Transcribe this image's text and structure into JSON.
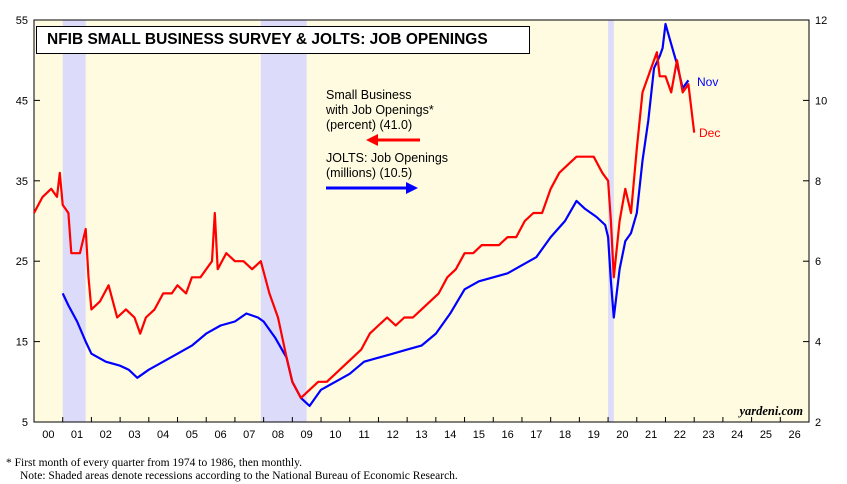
{
  "chart_data": {
    "type": "line",
    "title": "NFIB SMALL BUSINESS SURVEY & JOLTS: JOB OPENINGS",
    "x_range": [
      2000.0,
      2027.0
    ],
    "left_axis": {
      "ylim": [
        5,
        55
      ],
      "ticks": [
        5,
        15,
        25,
        35,
        45,
        55
      ]
    },
    "right_axis": {
      "ylim": [
        2,
        12
      ],
      "ticks": [
        2,
        4,
        6,
        8,
        10,
        12
      ]
    },
    "x_tick_labels": [
      "00",
      "01",
      "02",
      "03",
      "04",
      "05",
      "06",
      "07",
      "08",
      "09",
      "10",
      "11",
      "12",
      "13",
      "14",
      "15",
      "16",
      "17",
      "18",
      "19",
      "20",
      "21",
      "22",
      "23",
      "24",
      "25",
      "26"
    ],
    "recessions": [
      [
        2001.0,
        2001.8
      ],
      [
        2007.9,
        2009.5
      ],
      [
        2020.0,
        2020.2
      ]
    ],
    "series": [
      {
        "name": "Small Business with Job Openings*",
        "legend": [
          "Small Business",
          "with Job Openings*",
          "(percent) (41.0)"
        ],
        "axis": "left",
        "color": "#ff0000",
        "end_label": "Dec",
        "points": [
          [
            2000.0,
            31
          ],
          [
            2000.3,
            33
          ],
          [
            2000.6,
            34
          ],
          [
            2000.8,
            33
          ],
          [
            2000.9,
            36
          ],
          [
            2001.0,
            32
          ],
          [
            2001.2,
            31
          ],
          [
            2001.3,
            26
          ],
          [
            2001.6,
            26
          ],
          [
            2001.8,
            29
          ],
          [
            2001.9,
            23
          ],
          [
            2002.0,
            19
          ],
          [
            2002.3,
            20
          ],
          [
            2002.6,
            22
          ],
          [
            2002.9,
            18
          ],
          [
            2003.2,
            19
          ],
          [
            2003.5,
            18
          ],
          [
            2003.7,
            16
          ],
          [
            2003.9,
            18
          ],
          [
            2004.2,
            19
          ],
          [
            2004.5,
            21
          ],
          [
            2004.8,
            21
          ],
          [
            2005.0,
            22
          ],
          [
            2005.3,
            21
          ],
          [
            2005.5,
            23
          ],
          [
            2005.8,
            23
          ],
          [
            2006.0,
            24
          ],
          [
            2006.2,
            25
          ],
          [
            2006.3,
            31
          ],
          [
            2006.4,
            24
          ],
          [
            2006.7,
            26
          ],
          [
            2007.0,
            25
          ],
          [
            2007.3,
            25
          ],
          [
            2007.6,
            24
          ],
          [
            2007.9,
            25
          ],
          [
            2008.2,
            21
          ],
          [
            2008.5,
            18
          ],
          [
            2008.8,
            13
          ],
          [
            2009.0,
            10
          ],
          [
            2009.3,
            8
          ],
          [
            2009.6,
            9
          ],
          [
            2009.9,
            10
          ],
          [
            2010.2,
            10
          ],
          [
            2010.5,
            11
          ],
          [
            2010.8,
            12
          ],
          [
            2011.1,
            13
          ],
          [
            2011.4,
            14
          ],
          [
            2011.7,
            16
          ],
          [
            2012.0,
            17
          ],
          [
            2012.3,
            18
          ],
          [
            2012.6,
            17
          ],
          [
            2012.9,
            18
          ],
          [
            2013.2,
            18
          ],
          [
            2013.5,
            19
          ],
          [
            2013.8,
            20
          ],
          [
            2014.1,
            21
          ],
          [
            2014.4,
            23
          ],
          [
            2014.7,
            24
          ],
          [
            2015.0,
            26
          ],
          [
            2015.3,
            26
          ],
          [
            2015.6,
            27
          ],
          [
            2015.9,
            27
          ],
          [
            2016.2,
            27
          ],
          [
            2016.5,
            28
          ],
          [
            2016.8,
            28
          ],
          [
            2017.1,
            30
          ],
          [
            2017.4,
            31
          ],
          [
            2017.7,
            31
          ],
          [
            2018.0,
            34
          ],
          [
            2018.3,
            36
          ],
          [
            2018.6,
            37
          ],
          [
            2018.9,
            38
          ],
          [
            2019.2,
            38
          ],
          [
            2019.5,
            38
          ],
          [
            2019.8,
            36
          ],
          [
            2020.0,
            35
          ],
          [
            2020.1,
            30
          ],
          [
            2020.2,
            23
          ],
          [
            2020.4,
            30
          ],
          [
            2020.6,
            34
          ],
          [
            2020.8,
            31
          ],
          [
            2021.0,
            39
          ],
          [
            2021.2,
            46
          ],
          [
            2021.5,
            49
          ],
          [
            2021.7,
            51
          ],
          [
            2021.8,
            48
          ],
          [
            2022.0,
            48
          ],
          [
            2022.2,
            46
          ],
          [
            2022.4,
            50
          ],
          [
            2022.6,
            46
          ],
          [
            2022.8,
            47
          ],
          [
            2023.0,
            41
          ]
        ]
      },
      {
        "name": "JOLTS: Job Openings",
        "legend": [
          "JOLTS: Job Openings",
          "(millions) (10.5)"
        ],
        "axis": "right",
        "color": "#0000ff",
        "end_label": "Nov",
        "points": [
          [
            2001.0,
            5.2
          ],
          [
            2001.2,
            4.9
          ],
          [
            2001.5,
            4.5
          ],
          [
            2001.8,
            4.0
          ],
          [
            2002.0,
            3.7
          ],
          [
            2002.5,
            3.5
          ],
          [
            2003.0,
            3.4
          ],
          [
            2003.3,
            3.3
          ],
          [
            2003.6,
            3.1
          ],
          [
            2004.0,
            3.3
          ],
          [
            2004.5,
            3.5
          ],
          [
            2005.0,
            3.7
          ],
          [
            2005.5,
            3.9
          ],
          [
            2006.0,
            4.2
          ],
          [
            2006.5,
            4.4
          ],
          [
            2007.0,
            4.5
          ],
          [
            2007.4,
            4.7
          ],
          [
            2007.8,
            4.6
          ],
          [
            2008.0,
            4.5
          ],
          [
            2008.4,
            4.1
          ],
          [
            2008.8,
            3.6
          ],
          [
            2009.0,
            3.0
          ],
          [
            2009.3,
            2.6
          ],
          [
            2009.6,
            2.4
          ],
          [
            2010.0,
            2.8
          ],
          [
            2010.5,
            3.0
          ],
          [
            2011.0,
            3.2
          ],
          [
            2011.5,
            3.5
          ],
          [
            2012.0,
            3.6
          ],
          [
            2012.5,
            3.7
          ],
          [
            2013.0,
            3.8
          ],
          [
            2013.5,
            3.9
          ],
          [
            2014.0,
            4.2
          ],
          [
            2014.5,
            4.7
          ],
          [
            2015.0,
            5.3
          ],
          [
            2015.5,
            5.5
          ],
          [
            2016.0,
            5.6
          ],
          [
            2016.5,
            5.7
          ],
          [
            2017.0,
            5.9
          ],
          [
            2017.5,
            6.1
          ],
          [
            2018.0,
            6.6
          ],
          [
            2018.5,
            7.0
          ],
          [
            2018.9,
            7.5
          ],
          [
            2019.2,
            7.3
          ],
          [
            2019.6,
            7.1
          ],
          [
            2019.9,
            6.9
          ],
          [
            2020.0,
            6.6
          ],
          [
            2020.1,
            5.5
          ],
          [
            2020.2,
            4.6
          ],
          [
            2020.4,
            5.8
          ],
          [
            2020.6,
            6.5
          ],
          [
            2020.8,
            6.7
          ],
          [
            2021.0,
            7.2
          ],
          [
            2021.2,
            8.5
          ],
          [
            2021.4,
            9.5
          ],
          [
            2021.6,
            10.8
          ],
          [
            2021.8,
            11.1
          ],
          [
            2021.9,
            11.3
          ],
          [
            2022.0,
            11.9
          ],
          [
            2022.2,
            11.4
          ],
          [
            2022.4,
            10.9
          ],
          [
            2022.6,
            10.3
          ],
          [
            2022.8,
            10.5
          ]
        ]
      }
    ],
    "credit": "yardeni.com",
    "footnotes": [
      "*   First month of every quarter from 1974 to 1986, then monthly.",
      "Note: Shaded areas denote recessions according to the National Bureau of Economic Research."
    ],
    "colors": {
      "plot_bg": "#fffbe0",
      "recession": "#dcdcfa",
      "red": "#ff0000",
      "blue": "#0000ff"
    }
  }
}
